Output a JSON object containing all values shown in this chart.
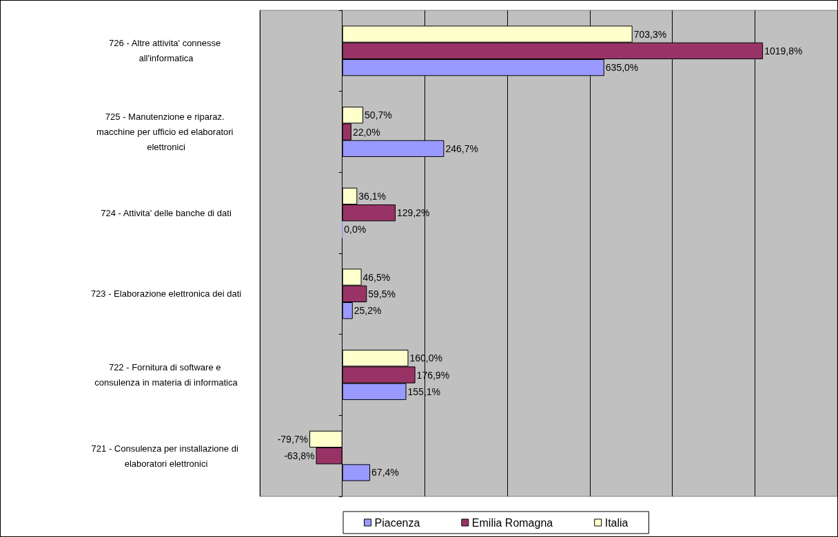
{
  "chart_data": {
    "type": "bar",
    "orientation": "horizontal",
    "categories": [
      "726 - Altre attivita' connesse all'informatica",
      "725 - Manutenzione e riparaz. macchine per ufficio ed elaboratori elettronici",
      "724 - Attivita' delle banche di dati",
      "723 - Elaborazione elettronica dei dati",
      "722 - Fornitura di software e consulenza in materia di informatica",
      "721 - Consulenza per installazione di elaboratori elettronici"
    ],
    "series": [
      {
        "name": "Piacenza",
        "color": "#9999ff",
        "values": [
          635.0,
          246.7,
          0.0,
          25.2,
          155.1,
          67.4
        ],
        "value_labels": [
          "635,0%",
          "246,7%",
          "0,0%",
          "25,2%",
          "155,1%",
          "67,4%"
        ]
      },
      {
        "name": "Emilia Romagna",
        "color": "#993366",
        "values": [
          1019.8,
          22.0,
          129.2,
          59.5,
          176.9,
          -63.8
        ],
        "value_labels": [
          "1019,8%",
          "22,0%",
          "129,2%",
          "59,5%",
          "176,9%",
          "-63,8%"
        ]
      },
      {
        "name": "Italia",
        "color": "#ffffcc",
        "values": [
          703.3,
          50.7,
          36.1,
          46.5,
          160.0,
          -79.7
        ],
        "value_labels": [
          "703,3%",
          "50,7%",
          "36,1%",
          "46,5%",
          "160,0%",
          "-79,7%"
        ]
      }
    ],
    "xlim": [
      -200,
      1200
    ],
    "xticks": [
      {
        "value": -200,
        "label": null
      },
      {
        "value": 0,
        "label": null
      },
      {
        "value": 200,
        "label": null
      },
      {
        "value": 400,
        "label": null
      },
      {
        "value": 600,
        "label": null
      },
      {
        "value": 800,
        "label": null
      },
      {
        "value": 1000,
        "label": null
      },
      {
        "value": 1200,
        "label": null
      }
    ],
    "grid": "x",
    "legend": "bottom"
  }
}
